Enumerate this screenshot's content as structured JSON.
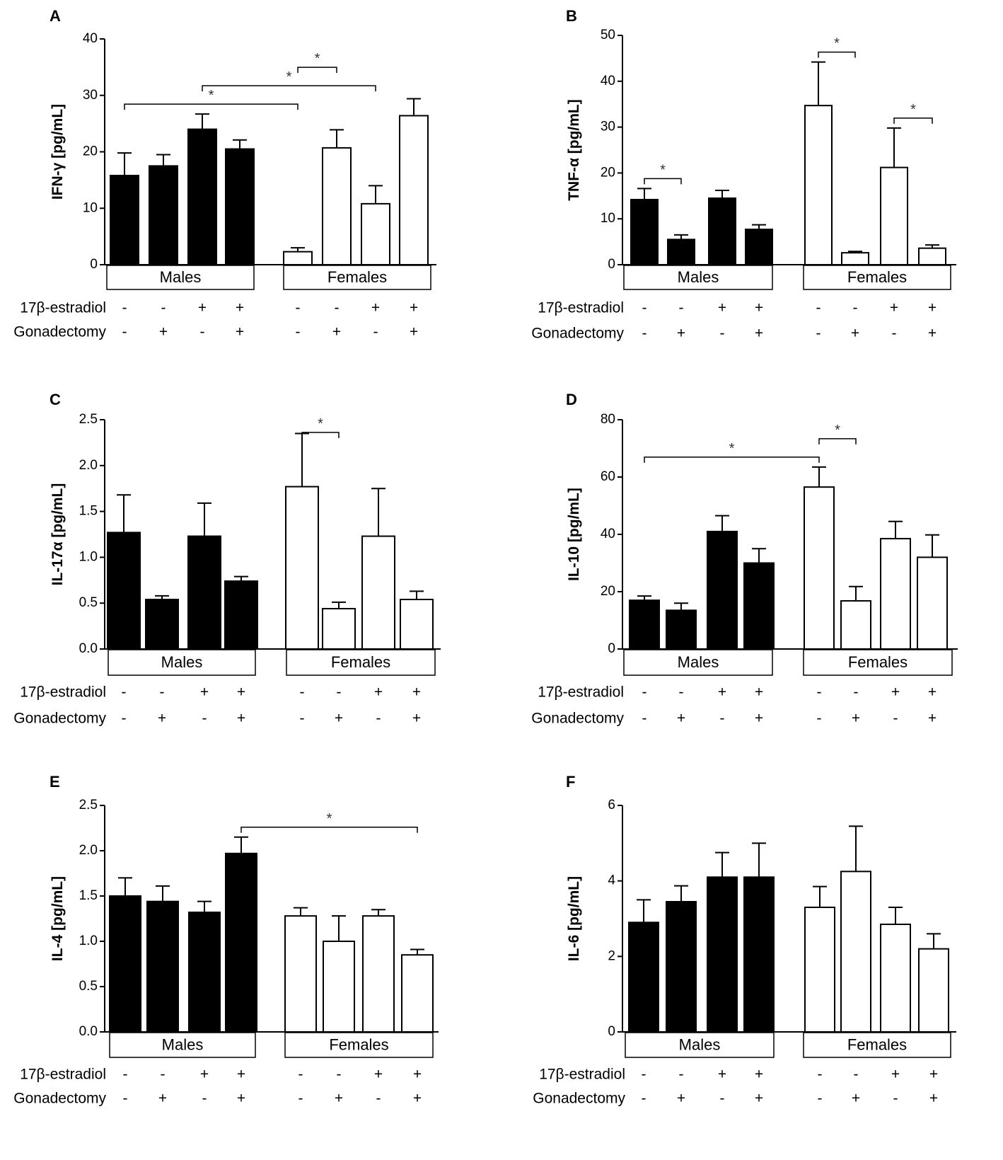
{
  "row_labels": {
    "estradiol": "17β-estradiol",
    "gonadectomy": "Gonadectomy"
  },
  "groups": [
    "Males",
    "Females"
  ],
  "treatments": {
    "estradiol": [
      "-",
      "-",
      "+",
      "+",
      "-",
      "-",
      "+",
      "+"
    ],
    "gonadectomy": [
      "-",
      "+",
      "-",
      "+",
      "-",
      "+",
      "-",
      "+"
    ]
  },
  "colors": {
    "males_fill": "#000000",
    "females_fill": "#ffffff",
    "stroke": "#000000"
  },
  "chart_data": [
    {
      "panel": "A",
      "type": "bar",
      "ylabel": "IFN-γ [pg/mL]",
      "ylim": [
        0,
        40
      ],
      "yticks": [
        "0",
        "10",
        "20",
        "30",
        "40"
      ],
      "values": [
        15.8,
        17.5,
        24.0,
        20.5,
        2.3,
        20.7,
        10.8,
        26.4
      ],
      "errors": [
        4.0,
        2.0,
        2.7,
        1.6,
        0.7,
        3.2,
        3.2,
        3.0
      ],
      "significance": [
        {
          "from": 0,
          "to": 4,
          "label": "*"
        },
        {
          "from": 2,
          "to": 6,
          "label": "*"
        },
        {
          "from": 4,
          "to": 5,
          "label": "*"
        }
      ]
    },
    {
      "panel": "B",
      "type": "bar",
      "ylabel": "TNF-α [pg/mL]",
      "ylim": [
        0,
        50
      ],
      "yticks": [
        "0",
        "10",
        "20",
        "30",
        "40",
        "50"
      ],
      "values": [
        14.2,
        5.5,
        14.5,
        7.7,
        34.7,
        2.6,
        21.2,
        3.6
      ],
      "errors": [
        2.4,
        1.0,
        1.7,
        1.0,
        9.5,
        0.3,
        8.6,
        0.7
      ],
      "significance": [
        {
          "from": 0,
          "to": 1,
          "label": "*"
        },
        {
          "from": 4,
          "to": 5,
          "label": "*"
        },
        {
          "from": 6,
          "to": 7,
          "label": "*"
        }
      ]
    },
    {
      "panel": "C",
      "type": "bar",
      "ylabel": "IL-17α [pg/mL]",
      "ylim": [
        0,
        2.5
      ],
      "yticks": [
        "0.0",
        "0.5",
        "1.0",
        "1.5",
        "2.0",
        "2.5"
      ],
      "values": [
        1.27,
        0.54,
        1.23,
        0.74,
        1.77,
        0.44,
        1.23,
        0.54
      ],
      "errors": [
        0.41,
        0.04,
        0.36,
        0.05,
        0.58,
        0.07,
        0.52,
        0.09
      ],
      "significance": [
        {
          "from": 4,
          "to": 5,
          "label": "*"
        }
      ]
    },
    {
      "panel": "D",
      "type": "bar",
      "ylabel": "IL-10 [pg/mL]",
      "ylim": [
        0,
        80
      ],
      "yticks": [
        "0",
        "20",
        "40",
        "60",
        "80"
      ],
      "values": [
        17.0,
        13.5,
        41.0,
        30.0,
        56.5,
        16.8,
        38.5,
        32.0
      ],
      "errors": [
        1.5,
        2.5,
        5.5,
        5.0,
        7.0,
        5.0,
        6.0,
        7.8
      ],
      "significance": [
        {
          "from": 0,
          "to": 4,
          "label": "*"
        },
        {
          "from": 4,
          "to": 5,
          "label": "*"
        }
      ]
    },
    {
      "panel": "E",
      "type": "bar",
      "ylabel": "IL-4 [pg/mL]",
      "ylim": [
        0,
        2.5
      ],
      "yticks": [
        "0.0",
        "0.5",
        "1.0",
        "1.5",
        "2.0",
        "2.5"
      ],
      "values": [
        1.5,
        1.44,
        1.32,
        1.97,
        1.28,
        1.0,
        1.28,
        0.85
      ],
      "errors": [
        0.2,
        0.17,
        0.12,
        0.18,
        0.09,
        0.28,
        0.07,
        0.06
      ],
      "significance": [
        {
          "from": 3,
          "to": 7,
          "label": "*"
        }
      ]
    },
    {
      "panel": "F",
      "type": "bar",
      "ylabel": "IL-6 [pg/mL]",
      "ylim": [
        0,
        6
      ],
      "yticks": [
        "0",
        "2",
        "4",
        "6"
      ],
      "values": [
        2.9,
        3.45,
        4.1,
        4.1,
        3.3,
        4.25,
        2.85,
        2.2
      ],
      "errors": [
        0.6,
        0.42,
        0.65,
        0.9,
        0.55,
        1.2,
        0.45,
        0.4
      ],
      "significance": []
    }
  ]
}
